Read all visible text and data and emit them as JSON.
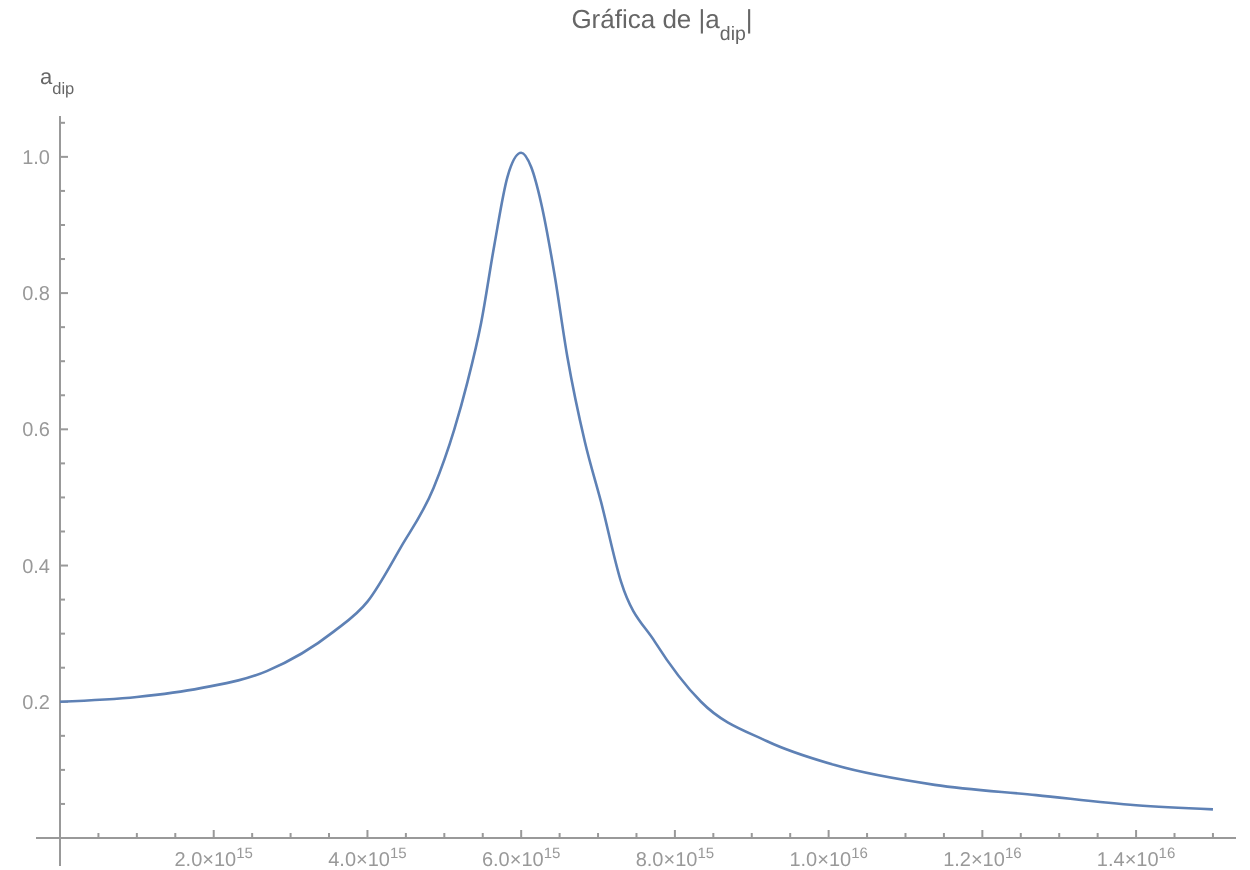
{
  "chart_data": {
    "type": "line",
    "title": "Gráfica de |a$_{dip}$|",
    "ylabel": "a$_{dip}$",
    "x": [
      0,
      1000000000000000.0,
      1830000000000000.0,
      2690000000000000.0,
      3560000000000000.0,
      4000000000000000.0,
      4430000000000000.0,
      4860000000000000.0,
      5130000000000000.0,
      5300000000000000.0,
      5480000000000000.0,
      5650000000000000.0,
      5820000000000000.0,
      6000000000000000.0,
      6130000000000000.0,
      6260000000000000.0,
      6430000000000000.0,
      6600000000000000.0,
      6830000000000000.0,
      7040000000000000.0,
      7300000000000000.0,
      7740000000000000.0,
      8340000000000000.0,
      9200000000000000.0,
      1.008e+16,
      1.138e+16,
      1.27e+16,
      1.4e+16,
      1.5e+16
    ],
    "series": [
      {
        "color": "#5e81b5",
        "values": [
          0.2,
          0.207,
          0.22,
          0.245,
          0.303,
          0.347,
          0.426,
          0.514,
          0.6,
          0.669,
          0.757,
          0.87,
          0.97,
          1.006,
          0.985,
          0.932,
          0.83,
          0.707,
          0.581,
          0.493,
          0.376,
          0.288,
          0.2,
          0.142,
          0.107,
          0.078,
          0.063,
          0.048,
          0.042
        ]
      }
    ],
    "xlim": [
      0,
      1.53e+16
    ],
    "ylim": [
      0,
      1.06
    ],
    "xticks": [
      {
        "value": 500000000000000.0,
        "label": null
      },
      {
        "value": 1000000000000000.0,
        "label": null
      },
      {
        "value": 1500000000000000.0,
        "label": null
      },
      {
        "value": 2000000000000000.0,
        "label": "2.0×10$^{15}$"
      },
      {
        "value": 2500000000000000.0,
        "label": null
      },
      {
        "value": 3000000000000000.0,
        "label": null
      },
      {
        "value": 3500000000000000.0,
        "label": null
      },
      {
        "value": 4000000000000000.0,
        "label": "4.0×10$^{15}$"
      },
      {
        "value": 4500000000000000.0,
        "label": null
      },
      {
        "value": 5000000000000000.0,
        "label": null
      },
      {
        "value": 5500000000000000.0,
        "label": null
      },
      {
        "value": 6000000000000000.0,
        "label": "6.0×10$^{15}$"
      },
      {
        "value": 6500000000000000.0,
        "label": null
      },
      {
        "value": 7000000000000000.0,
        "label": null
      },
      {
        "value": 7500000000000000.0,
        "label": null
      },
      {
        "value": 8000000000000000.0,
        "label": "8.0×10$^{15}$"
      },
      {
        "value": 8500000000000000.0,
        "label": null
      },
      {
        "value": 9000000000000000.0,
        "label": null
      },
      {
        "value": 9500000000000000.0,
        "label": null
      },
      {
        "value": 1e+16,
        "label": "1.0×10$^{16}$"
      },
      {
        "value": 1.05e+16,
        "label": null
      },
      {
        "value": 1.1e+16,
        "label": null
      },
      {
        "value": 1.15e+16,
        "label": null
      },
      {
        "value": 1.2e+16,
        "label": "1.2×10$^{16}$"
      },
      {
        "value": 1.25e+16,
        "label": null
      },
      {
        "value": 1.3e+16,
        "label": null
      },
      {
        "value": 1.35e+16,
        "label": null
      },
      {
        "value": 1.4e+16,
        "label": "1.4×10$^{16}$"
      },
      {
        "value": 1.45e+16,
        "label": null
      },
      {
        "value": 1.5e+16,
        "label": null
      }
    ],
    "yticks": [
      {
        "value": 0.05,
        "label": null
      },
      {
        "value": 0.1,
        "label": null
      },
      {
        "value": 0.15,
        "label": null
      },
      {
        "value": 0.2,
        "label": "0.2"
      },
      {
        "value": 0.25,
        "label": null
      },
      {
        "value": 0.3,
        "label": null
      },
      {
        "value": 0.35,
        "label": null
      },
      {
        "value": 0.4,
        "label": "0.4"
      },
      {
        "value": 0.45,
        "label": null
      },
      {
        "value": 0.5,
        "label": null
      },
      {
        "value": 0.55,
        "label": null
      },
      {
        "value": 0.6,
        "label": "0.6"
      },
      {
        "value": 0.65,
        "label": null
      },
      {
        "value": 0.7,
        "label": null
      },
      {
        "value": 0.75,
        "label": null
      },
      {
        "value": 0.8,
        "label": "0.8"
      },
      {
        "value": 0.85,
        "label": null
      },
      {
        "value": 0.9,
        "label": null
      },
      {
        "value": 0.95,
        "label": null
      },
      {
        "value": 1.0,
        "label": "1.0"
      },
      {
        "value": 1.05,
        "label": null
      }
    ],
    "grid": false
  }
}
